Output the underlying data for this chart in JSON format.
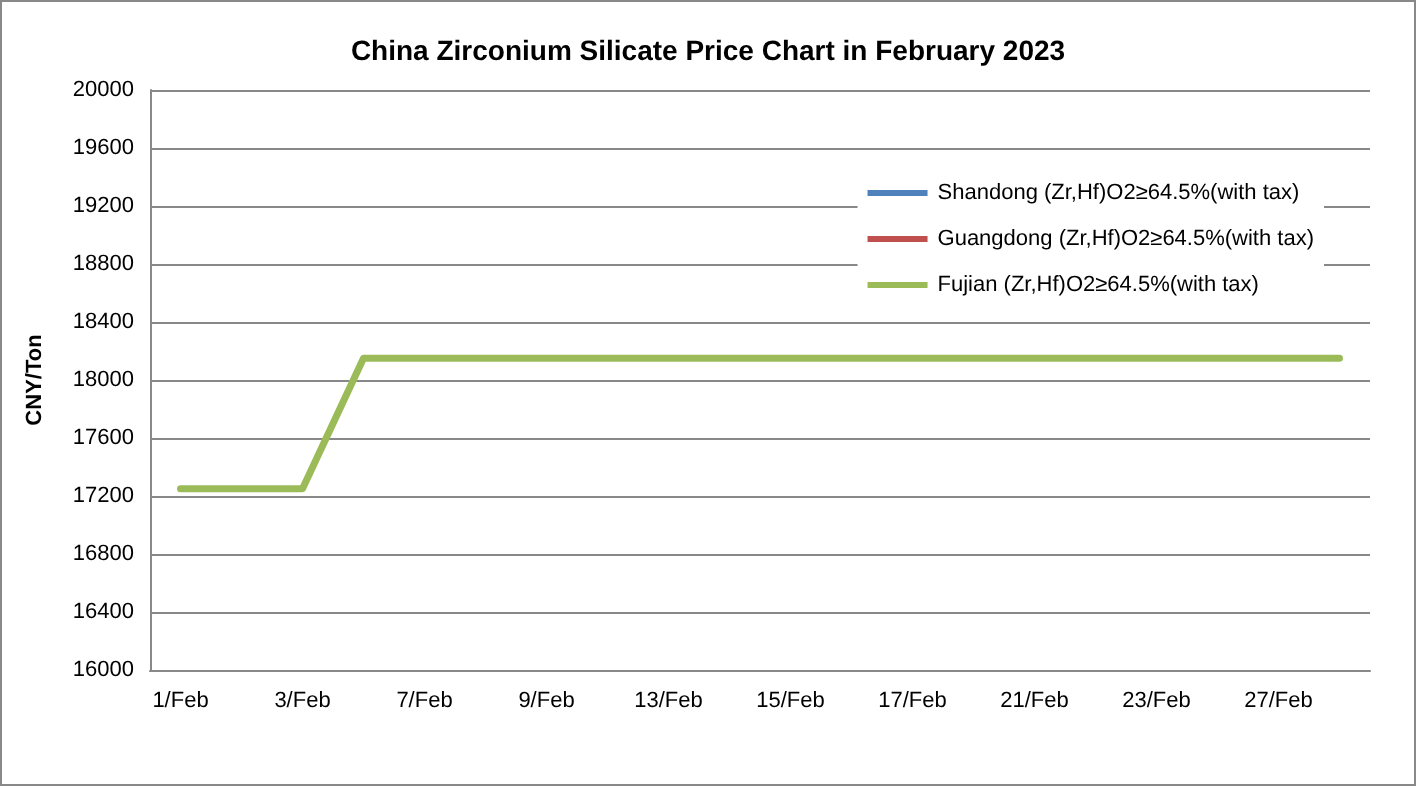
{
  "chart_data": {
    "type": "line",
    "title": "China Zirconium Silicate Price Chart in February 2023",
    "ylabel": "CNY/Ton",
    "categories": [
      "1/Feb",
      null,
      "3/Feb",
      null,
      "7/Feb",
      null,
      "9/Feb",
      null,
      "13/Feb",
      null,
      "15/Feb",
      null,
      "17/Feb",
      null,
      "21/Feb",
      null,
      "23/Feb",
      null,
      "27/Feb",
      null
    ],
    "series": [
      {
        "name": "Shandong (Zr,Hf)O2≥64.5%(with tax)",
        "color": "#4f81bd",
        "values": [
          null,
          null,
          null,
          null,
          null,
          null,
          null,
          null,
          null,
          null,
          null,
          null,
          null,
          null,
          null,
          null,
          null,
          null,
          null,
          null
        ]
      },
      {
        "name": "Guangdong (Zr,Hf)O2≥64.5%(with tax)",
        "color": "#c0504d",
        "values": [
          null,
          null,
          null,
          null,
          null,
          null,
          null,
          null,
          null,
          null,
          null,
          null,
          null,
          null,
          null,
          null,
          null,
          null,
          null,
          null
        ]
      },
      {
        "name": "Fujian (Zr,Hf)O2≥64.5%(with tax)",
        "color": "#9bbb59",
        "values": [
          17250,
          17250,
          17250,
          18150,
          18150,
          18150,
          18150,
          18150,
          18150,
          18150,
          18150,
          18150,
          18150,
          18150,
          18150,
          18150,
          18150,
          18150,
          18150,
          18150
        ]
      }
    ],
    "ylim": [
      16000,
      20000
    ],
    "yticks": [
      16000,
      16400,
      16800,
      17200,
      17600,
      18000,
      18400,
      18800,
      19200,
      19600,
      20000
    ],
    "grid": "y",
    "legend": "top right",
    "marker": "none",
    "line_style": "solid"
  }
}
